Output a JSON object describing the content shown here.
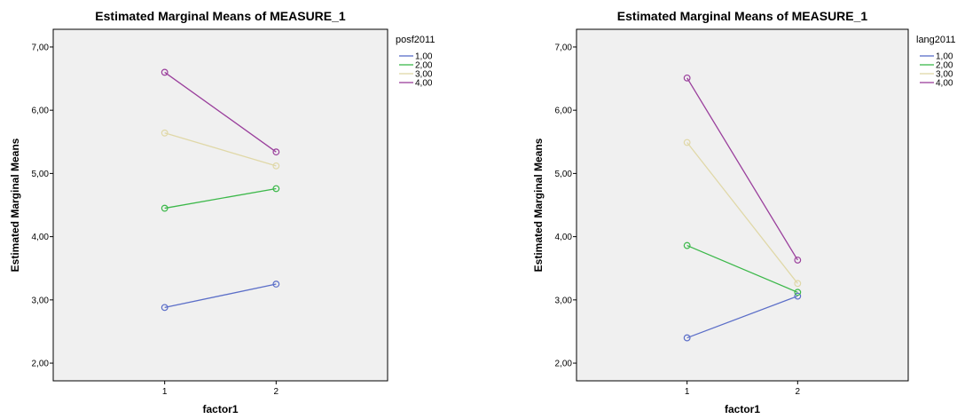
{
  "chart_data": [
    {
      "type": "line",
      "title": "Estimated Marginal Means of MEASURE_1",
      "xlabel": "factor1",
      "ylabel": "Estimated Marginal Means",
      "categories": [
        "1",
        "2"
      ],
      "yticks": [
        "2,00",
        "3,00",
        "4,00",
        "5,00",
        "6,00",
        "7,00"
      ],
      "ylim": [
        1.72,
        7.28
      ],
      "legend_title": "posf2011",
      "legend_position": "right",
      "grid": false,
      "series": [
        {
          "name": "1,00",
          "color": "#5b6ec8",
          "values": [
            2.88,
            3.25
          ]
        },
        {
          "name": "2,00",
          "color": "#3cb84a",
          "values": [
            4.45,
            4.76
          ]
        },
        {
          "name": "3,00",
          "color": "#e0d8a8",
          "values": [
            5.64,
            5.12
          ]
        },
        {
          "name": "4,00",
          "color": "#9a3f9c",
          "values": [
            6.6,
            5.34
          ]
        }
      ]
    },
    {
      "type": "line",
      "title": "Estimated Marginal Means of MEASURE_1",
      "xlabel": "factor1",
      "ylabel": "Estimated Marginal Means",
      "categories": [
        "1",
        "2"
      ],
      "yticks": [
        "2,00",
        "3,00",
        "4,00",
        "5,00",
        "6,00",
        "7,00"
      ],
      "ylim": [
        1.72,
        7.28
      ],
      "legend_title": "lang2011",
      "legend_position": "right",
      "grid": false,
      "series": [
        {
          "name": "1,00",
          "color": "#5b6ec8",
          "values": [
            2.4,
            3.06
          ]
        },
        {
          "name": "2,00",
          "color": "#3cb84a",
          "values": [
            3.86,
            3.12
          ]
        },
        {
          "name": "3,00",
          "color": "#e0d8a8",
          "values": [
            5.49,
            3.26
          ]
        },
        {
          "name": "4,00",
          "color": "#9a3f9c",
          "values": [
            6.51,
            3.63
          ]
        }
      ]
    }
  ],
  "style": {
    "plot_background": "#f0f0f0",
    "axis_color": "#000000"
  }
}
